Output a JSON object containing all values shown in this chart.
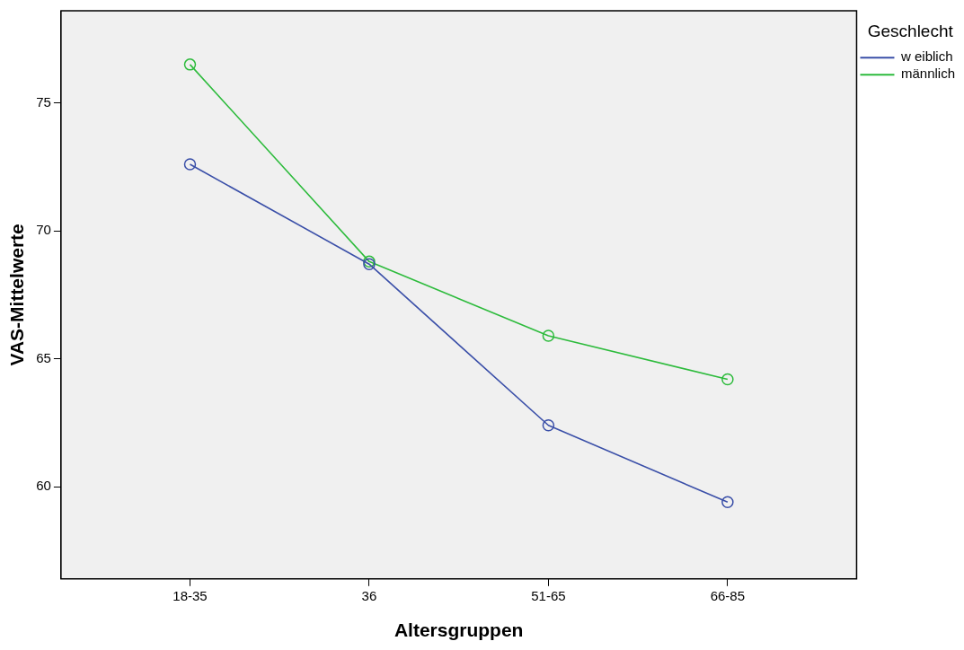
{
  "chart_data": {
    "type": "line",
    "xlabel": "Altersgruppen",
    "ylabel": "VAS-Mittelwerte",
    "legend_title": "Geschlecht",
    "legend": "top right",
    "marker": "circle",
    "grid": false,
    "categories": [
      "18-35",
      "36",
      "51-65",
      "66-85"
    ],
    "ylim": [
      56.4,
      78.6
    ],
    "yticks": [
      60,
      65,
      70,
      75
    ],
    "series": [
      {
        "name": "w eiblich",
        "color": "#3a4fa8",
        "values": [
          72.6,
          68.7,
          62.4,
          59.4
        ]
      },
      {
        "name": "männlich",
        "color": "#2dbb3c",
        "values": [
          76.5,
          68.8,
          65.9,
          64.2
        ]
      }
    ]
  }
}
